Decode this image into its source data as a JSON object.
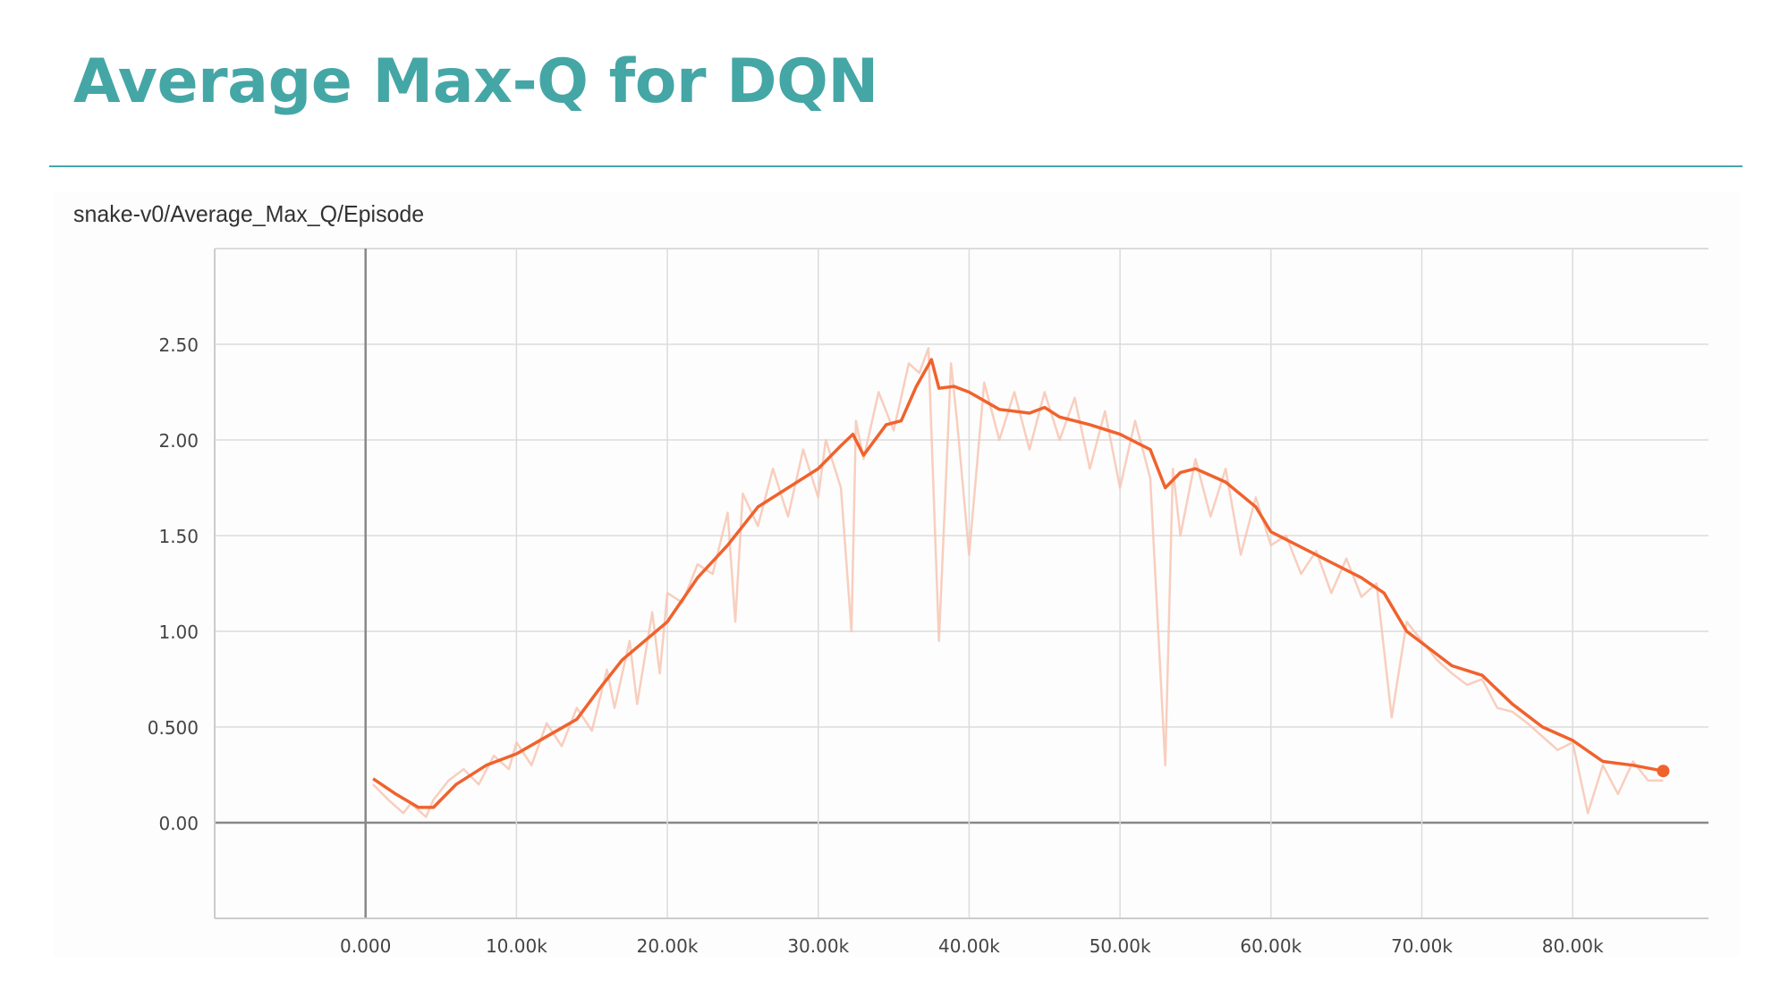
{
  "slide": {
    "title": "Average Max-Q for DQN"
  },
  "colors": {
    "title": "#45a6a6",
    "line": "#f0622d",
    "raw_line": "#f7c6b3",
    "grid": "#dcdcdc",
    "axis": "#888888"
  },
  "chart_data": {
    "type": "line",
    "title": "snake-v0/Average_Max_Q/Episode",
    "xlabel": "",
    "ylabel": "",
    "xlim": [
      -10000,
      89000
    ],
    "ylim": [
      -0.5,
      3.0
    ],
    "x_ticks": [
      0,
      10000,
      20000,
      30000,
      40000,
      50000,
      60000,
      70000,
      80000
    ],
    "x_tick_labels": [
      "0.000",
      "10.00k",
      "20.00k",
      "30.00k",
      "40.00k",
      "50.00k",
      "60.00k",
      "70.00k",
      "80.00k"
    ],
    "y_ticks": [
      0,
      0.5,
      1.0,
      1.5,
      2.0,
      2.5
    ],
    "y_tick_labels": [
      "0.00",
      "0.500",
      "1.00",
      "1.50",
      "2.00",
      "2.50"
    ],
    "grid": true,
    "series": [
      {
        "style": "smoothed",
        "x": [
          500,
          2000,
          3500,
          4500,
          6000,
          8000,
          10000,
          12000,
          14000,
          15500,
          17000,
          18500,
          20000,
          22000,
          24000,
          26000,
          28000,
          30000,
          31500,
          32300,
          33000,
          34500,
          35500,
          36500,
          37500,
          38000,
          39000,
          40000,
          42000,
          44000,
          45000,
          46000,
          48000,
          50000,
          52000,
          53000,
          54000,
          55000,
          57000,
          59000,
          60000,
          62000,
          64000,
          66000,
          67500,
          69000,
          72000,
          74000,
          76000,
          78000,
          80000,
          82000,
          84000,
          86000
        ],
        "y": [
          0.23,
          0.15,
          0.08,
          0.08,
          0.2,
          0.3,
          0.36,
          0.45,
          0.54,
          0.7,
          0.85,
          0.95,
          1.05,
          1.28,
          1.45,
          1.65,
          1.75,
          1.85,
          1.97,
          2.03,
          1.92,
          2.08,
          2.1,
          2.28,
          2.42,
          2.27,
          2.28,
          2.25,
          2.16,
          2.14,
          2.17,
          2.12,
          2.08,
          2.03,
          1.95,
          1.75,
          1.83,
          1.85,
          1.78,
          1.65,
          1.52,
          1.44,
          1.36,
          1.28,
          1.2,
          1.0,
          0.82,
          0.77,
          0.62,
          0.5,
          0.43,
          0.32,
          0.3,
          0.27
        ]
      },
      {
        "style": "raw",
        "x": [
          500,
          1500,
          2500,
          3000,
          4000,
          4500,
          5500,
          6500,
          7500,
          8500,
          9500,
          10000,
          11000,
          12000,
          13000,
          14000,
          15000,
          16000,
          16500,
          17500,
          18000,
          19000,
          19500,
          20000,
          21000,
          22000,
          23000,
          24000,
          24500,
          25000,
          26000,
          27000,
          28000,
          29000,
          30000,
          30500,
          31500,
          32200,
          32500,
          33000,
          34000,
          35000,
          36000,
          36700,
          37300,
          38000,
          38800,
          39200,
          40000,
          41000,
          42000,
          43000,
          44000,
          45000,
          46000,
          47000,
          48000,
          49000,
          50000,
          51000,
          52000,
          53000,
          53500,
          54000,
          55000,
          56000,
          57000,
          58000,
          59000,
          60000,
          61000,
          62000,
          63000,
          64000,
          65000,
          66000,
          67000,
          68000,
          69000,
          70000,
          71000,
          72000,
          73000,
          74000,
          75000,
          76000,
          77000,
          78000,
          79000,
          80000,
          81000,
          82000,
          83000,
          84000,
          85000,
          86000
        ],
        "y": [
          0.2,
          0.12,
          0.05,
          0.1,
          0.03,
          0.12,
          0.22,
          0.28,
          0.2,
          0.35,
          0.28,
          0.42,
          0.3,
          0.52,
          0.4,
          0.6,
          0.48,
          0.8,
          0.6,
          0.95,
          0.62,
          1.1,
          0.78,
          1.2,
          1.15,
          1.35,
          1.3,
          1.62,
          1.05,
          1.72,
          1.55,
          1.85,
          1.6,
          1.95,
          1.7,
          2.0,
          1.75,
          1.0,
          2.1,
          1.9,
          2.25,
          2.05,
          2.4,
          2.35,
          2.48,
          0.95,
          2.4,
          2.1,
          1.4,
          2.3,
          2.0,
          2.25,
          1.95,
          2.25,
          2.0,
          2.22,
          1.85,
          2.15,
          1.75,
          2.1,
          1.8,
          0.3,
          1.85,
          1.5,
          1.9,
          1.6,
          1.85,
          1.4,
          1.7,
          1.45,
          1.5,
          1.3,
          1.42,
          1.2,
          1.38,
          1.18,
          1.25,
          0.55,
          1.05,
          0.95,
          0.85,
          0.78,
          0.72,
          0.75,
          0.6,
          0.58,
          0.52,
          0.45,
          0.38,
          0.42,
          0.05,
          0.3,
          0.15,
          0.32,
          0.22,
          0.22
        ]
      }
    ]
  }
}
